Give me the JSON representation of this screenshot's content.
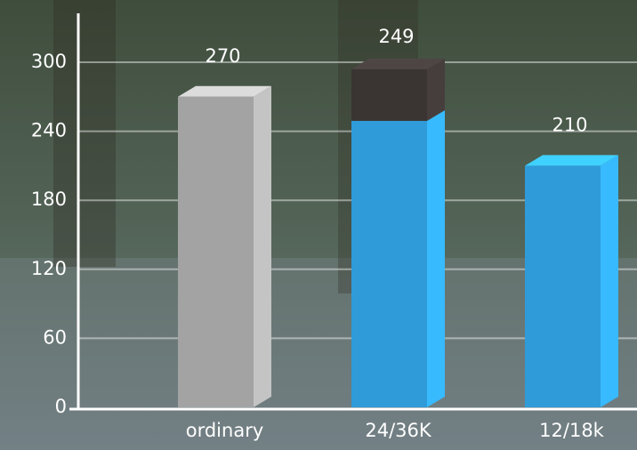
{
  "chart_data": {
    "type": "bar3d",
    "categories": [
      "ordinary",
      "24/36K",
      "12/18k"
    ],
    "series": [
      {
        "colors": [
          "#a3a3a3",
          "#2f9bd9",
          "#2f9bd9"
        ],
        "values": [
          270,
          249,
          210
        ]
      },
      {
        "color": "#3a3433",
        "values": [
          null,
          45,
          null
        ]
      }
    ],
    "ylim": [
      0,
      300
    ],
    "yticks": [
      0,
      60,
      120,
      180,
      240,
      300
    ],
    "grid": true
  }
}
